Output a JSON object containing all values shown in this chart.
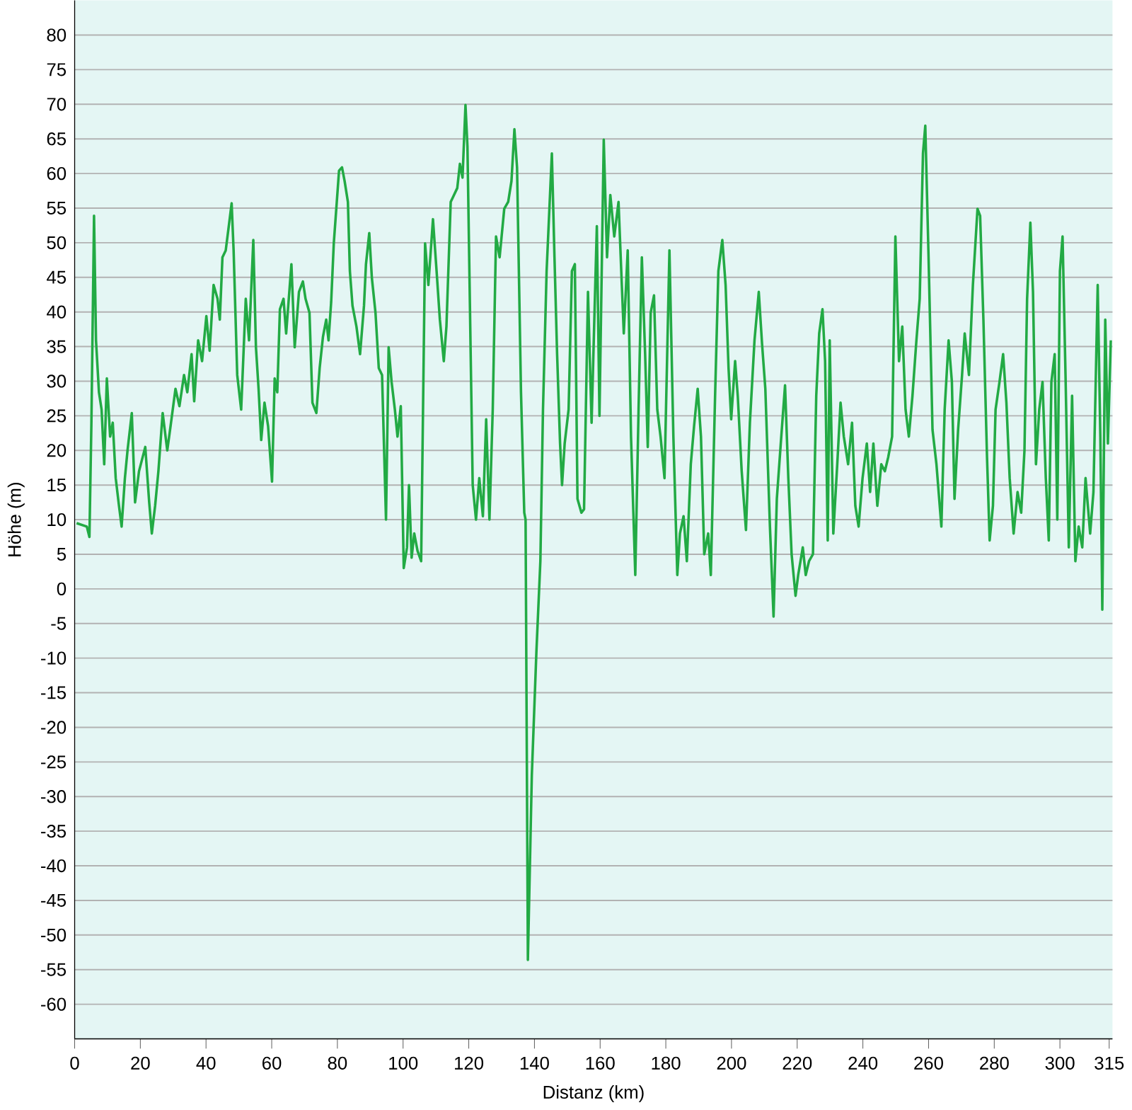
{
  "chart_data": {
    "type": "line",
    "xlabel": "Distanz  (km)",
    "ylabel": "Höhe (m)",
    "xlim": [
      0,
      316
    ],
    "ylim": [
      -65,
      85
    ],
    "xticks": [
      0,
      20,
      40,
      60,
      80,
      100,
      120,
      140,
      160,
      180,
      200,
      220,
      240,
      260,
      280,
      300,
      315
    ],
    "yticks": [
      -60,
      -55,
      -50,
      -45,
      -40,
      -35,
      -30,
      -25,
      -20,
      -15,
      -10,
      -5,
      0,
      5,
      10,
      15,
      20,
      25,
      30,
      35,
      40,
      45,
      50,
      55,
      60,
      65,
      70,
      75,
      80
    ],
    "grid": "y",
    "marker": "none",
    "line_style": "solid",
    "series": [
      {
        "color": "#22aa44",
        "x": [
          0.6,
          3.7,
          4.5,
          5.1,
          5.9,
          6.5,
          7.4,
          8.2,
          9.0,
          9.8,
          10.8,
          11.6,
          12.5,
          13.5,
          14.3,
          15.3,
          16.1,
          17.4,
          18.4,
          19.6,
          21.5,
          22.7,
          23.5,
          24.5,
          25.5,
          26.8,
          28.2,
          29.2,
          30.7,
          31.9,
          33.3,
          34.3,
          35.6,
          36.4,
          37.6,
          38.8,
          40.1,
          41.1,
          42.3,
          43.5,
          44.2,
          45.0,
          46.0,
          46.8,
          47.8,
          48.4,
          49.5,
          50.7,
          52.1,
          53.1,
          54.4,
          55.2,
          56.0,
          56.8,
          57.8,
          58.9,
          60.1,
          60.9,
          61.7,
          62.5,
          63.6,
          64.4,
          66.0,
          67.0,
          68.3,
          69.5,
          70.3,
          71.5,
          72.4,
          73.6,
          74.6,
          75.6,
          76.6,
          77.3,
          78.1,
          78.9,
          80.5,
          81.4,
          82.2,
          83.2,
          83.8,
          84.6,
          85.8,
          86.9,
          88.1,
          88.7,
          89.7,
          90.5,
          91.6,
          92.6,
          93.6,
          94.8,
          95.6,
          96.5,
          97.5,
          98.3,
          99.3,
          100.2,
          101.2,
          101.8,
          102.6,
          103.4,
          104.4,
          105.5,
          106.7,
          107.7,
          109.1,
          110.2,
          111.2,
          112.4,
          113.2,
          114.5,
          115.5,
          116.5,
          117.3,
          118.1,
          119.0,
          119.6,
          121.2,
          122.2,
          123.2,
          124.3,
          125.3,
          126.3,
          127.3,
          128.3,
          129.4,
          130.8,
          132.0,
          133.0,
          133.9,
          134.7,
          135.9,
          136.9,
          137.3,
          138.0,
          139.2,
          140.6,
          141.8,
          142.6,
          143.7,
          145.3,
          146.1,
          146.9,
          147.8,
          148.4,
          149.2,
          150.4,
          151.4,
          152.3,
          153.1,
          154.3,
          155.1,
          156.3,
          157.4,
          158.4,
          159.0,
          159.8,
          161.1,
          162.1,
          163.1,
          164.3,
          165.6,
          166.6,
          167.2,
          168.4,
          169.4,
          170.7,
          171.7,
          172.7,
          173.7,
          174.5,
          175.4,
          176.4,
          177.4,
          178.4,
          179.6,
          181.1,
          182.3,
          183.5,
          184.3,
          185.4,
          186.4,
          187.6,
          188.6,
          189.7,
          190.7,
          191.7,
          192.9,
          193.7,
          195.0,
          196.0,
          197.2,
          198.2,
          199.1,
          199.9,
          201.1,
          201.9,
          203.1,
          204.4,
          205.6,
          207.0,
          208.3,
          209.3,
          210.3,
          211.7,
          212.8,
          213.8,
          215.0,
          216.3,
          217.3,
          218.3,
          219.5,
          220.3,
          221.7,
          222.6,
          223.6,
          224.8,
          225.8,
          226.7,
          227.7,
          228.5,
          229.3,
          229.9,
          231.0,
          232.2,
          233.2,
          234.2,
          235.5,
          236.7,
          237.7,
          238.7,
          239.9,
          241.2,
          242.2,
          243.2,
          244.4,
          245.6,
          246.7,
          247.7,
          248.9,
          249.9,
          251.0,
          252.0,
          253.0,
          254.0,
          255.1,
          256.3,
          257.3,
          258.3,
          259.0,
          260.0,
          261.2,
          262.4,
          263.9,
          264.9,
          266.1,
          267.1,
          267.9,
          269.0,
          270.2,
          271.0,
          272.3,
          273.5,
          274.9,
          275.7,
          276.7,
          277.8,
          278.6,
          279.6,
          280.4,
          281.6,
          282.7,
          283.7,
          284.7,
          285.9,
          287.1,
          288.2,
          289.2,
          290.0,
          291.0,
          291.8,
          292.7,
          293.7,
          294.7,
          295.7,
          296.6,
          297.4,
          298.4,
          299.2,
          300.0,
          300.8,
          301.7,
          302.7,
          303.7,
          304.7,
          305.7,
          306.8,
          307.8,
          309.2,
          310.2,
          311.5,
          312.3,
          312.9,
          313.8,
          314.6,
          315.5
        ],
        "values": [
          9.5,
          9.0,
          7.5,
          24.0,
          53.9,
          35.9,
          28.4,
          25.9,
          18.0,
          30.4,
          22.0,
          24.0,
          16.0,
          12.0,
          9.0,
          16.0,
          20.0,
          25.4,
          12.5,
          17.0,
          20.5,
          12.5,
          8.0,
          12.0,
          17.0,
          25.4,
          20.0,
          23.5,
          28.9,
          26.4,
          30.9,
          28.4,
          33.9,
          27.1,
          35.9,
          32.9,
          39.4,
          34.4,
          43.9,
          41.9,
          38.9,
          47.9,
          48.9,
          51.9,
          55.7,
          48.9,
          30.9,
          25.9,
          41.9,
          35.9,
          50.4,
          34.9,
          28.9,
          21.5,
          26.9,
          23.5,
          15.5,
          30.4,
          28.4,
          40.4,
          41.9,
          36.9,
          46.9,
          34.9,
          42.9,
          44.4,
          41.9,
          39.9,
          26.9,
          25.4,
          31.9,
          36.4,
          38.9,
          35.9,
          41.4,
          49.9,
          60.4,
          60.9,
          58.9,
          55.9,
          45.9,
          40.9,
          37.9,
          33.9,
          40.9,
          46.9,
          51.4,
          44.9,
          39.9,
          31.9,
          30.9,
          10.0,
          34.9,
          29.9,
          25.9,
          22.0,
          26.4,
          3.0,
          6.0,
          15.0,
          4.5,
          8.0,
          5.5,
          4.0,
          49.9,
          43.9,
          53.4,
          45.9,
          38.9,
          32.9,
          37.9,
          55.9,
          56.9,
          57.9,
          61.4,
          59.4,
          69.9,
          63.9,
          15.0,
          10.0,
          16.0,
          10.5,
          24.5,
          10.0,
          25.9,
          50.9,
          47.9,
          54.9,
          55.9,
          58.9,
          66.4,
          60.9,
          28.4,
          11.0,
          10.0,
          -53.6,
          -26.9,
          -9.0,
          4.0,
          25.9,
          45.9,
          62.9,
          47.9,
          33.9,
          21.0,
          15.0,
          21.0,
          25.9,
          45.9,
          46.9,
          13.0,
          11.0,
          11.5,
          42.9,
          24.0,
          41.9,
          52.4,
          25.0,
          64.9,
          47.9,
          56.9,
          50.9,
          55.9,
          43.9,
          36.9,
          48.9,
          22.0,
          2.0,
          25.9,
          47.9,
          33.9,
          20.5,
          39.9,
          42.4,
          25.9,
          22.0,
          16.0,
          48.9,
          22.0,
          2.0,
          8.0,
          10.5,
          4.0,
          18.0,
          23.5,
          28.9,
          22.0,
          5.0,
          8.0,
          2.0,
          27.9,
          45.9,
          50.4,
          43.9,
          31.9,
          24.5,
          32.9,
          27.9,
          17.0,
          8.5,
          24.0,
          35.9,
          42.9,
          35.4,
          28.9,
          9.0,
          -4.0,
          13.0,
          21.0,
          29.4,
          16.0,
          5.0,
          -1.0,
          2.0,
          6.0,
          2.0,
          4.0,
          5.0,
          27.9,
          36.9,
          40.4,
          32.9,
          7.0,
          35.9,
          8.0,
          18.0,
          26.9,
          22.0,
          18.0,
          24.0,
          12.0,
          9.0,
          16.0,
          21.0,
          14.0,
          21.0,
          12.0,
          18.0,
          17.0,
          19.0,
          22.0,
          50.9,
          32.9,
          37.9,
          25.9,
          22.0,
          27.9,
          35.9,
          41.9,
          62.9,
          66.9,
          47.9,
          23.0,
          18.0,
          9.0,
          25.9,
          35.9,
          29.9,
          13.0,
          23.0,
          30.9,
          36.9,
          30.9,
          43.9,
          54.9,
          53.9,
          38.9,
          19.0,
          7.0,
          12.0,
          25.9,
          29.9,
          33.9,
          26.9,
          16.0,
          8.0,
          14.0,
          11.0,
          20.0,
          41.9,
          52.9,
          42.9,
          18.0,
          25.9,
          29.9,
          16.0,
          7.0,
          29.9,
          33.9,
          10.0,
          45.9,
          50.9,
          30.9,
          6.0,
          27.9,
          4.0,
          9.0,
          6.0,
          16.0,
          8.0,
          14.0,
          43.9,
          22.0,
          -3.0,
          38.9,
          21.0,
          35.9
        ]
      }
    ]
  }
}
